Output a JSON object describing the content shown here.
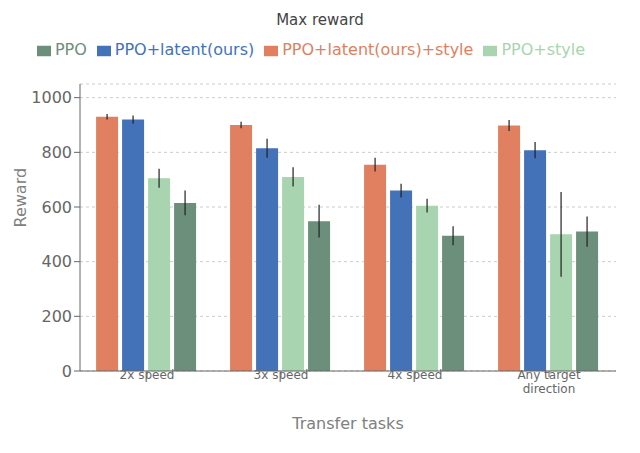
{
  "chart_data": {
    "type": "bar",
    "title": "Max reward",
    "x_label": "Transfer tasks",
    "y_label": "Reward",
    "categories": [
      "2x speed",
      "3x speed",
      "4x speed",
      "Any target\ndirection"
    ],
    "series": [
      {
        "name": "PPO+latent(ours)+style",
        "color": "#e08060",
        "values": [
          930,
          900,
          755,
          898
        ],
        "errors": [
          10,
          12,
          25,
          20
        ]
      },
      {
        "name": "PPO+latent(ours)",
        "color": "#4472b8",
        "values": [
          920,
          815,
          660,
          808
        ],
        "errors": [
          15,
          35,
          25,
          30
        ]
      },
      {
        "name": "PPO+style",
        "color": "#a8d5b0",
        "values": [
          705,
          710,
          605,
          500
        ],
        "errors": [
          35,
          35,
          25,
          155
        ]
      },
      {
        "name": "PPO",
        "color": "#6b8f7a",
        "values": [
          615,
          548,
          495,
          510
        ],
        "errors": [
          45,
          60,
          35,
          55
        ]
      }
    ],
    "ylim": [
      0,
      1050
    ],
    "yticks": [
      0,
      200,
      400,
      600,
      800,
      1000
    ],
    "grid": true,
    "legend": "top"
  }
}
